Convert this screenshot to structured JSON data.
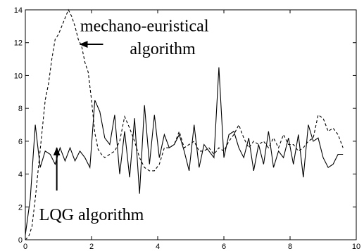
{
  "chart_data": {
    "type": "line",
    "title": "",
    "xlabel": "",
    "ylabel": "",
    "xlim": [
      0,
      10
    ],
    "ylim": [
      0,
      14
    ],
    "xticks": [
      0,
      2,
      4,
      6,
      8,
      10
    ],
    "yticks": [
      0,
      2,
      4,
      6,
      8,
      10,
      12,
      14
    ],
    "grid": false,
    "legend": "none",
    "series": [
      {
        "style": "solid",
        "color": "#000000",
        "x": [
          0.0,
          0.15,
          0.3,
          0.45,
          0.6,
          0.75,
          0.9,
          1.05,
          1.2,
          1.35,
          1.5,
          1.65,
          1.8,
          1.95,
          2.1,
          2.25,
          2.4,
          2.55,
          2.7,
          2.85,
          3.0,
          3.15,
          3.3,
          3.45,
          3.6,
          3.75,
          3.9,
          4.05,
          4.2,
          4.35,
          4.5,
          4.65,
          4.8,
          4.95,
          5.1,
          5.25,
          5.4,
          5.55,
          5.7,
          5.85,
          6.0,
          6.15,
          6.3,
          6.45,
          6.6,
          6.75,
          6.9,
          7.05,
          7.2,
          7.35,
          7.5,
          7.65,
          7.8,
          7.95,
          8.1,
          8.25,
          8.4,
          8.55,
          8.7,
          8.85,
          9.0,
          9.15,
          9.3,
          9.45,
          9.6
        ],
        "y": [
          0.3,
          2.5,
          7.0,
          4.4,
          5.4,
          5.2,
          4.6,
          5.6,
          4.8,
          5.6,
          4.8,
          5.4,
          5.0,
          4.4,
          8.5,
          7.8,
          6.2,
          5.8,
          7.6,
          4.0,
          6.6,
          3.8,
          7.4,
          2.8,
          8.2,
          4.6,
          7.6,
          5.0,
          6.4,
          5.6,
          5.8,
          6.4,
          5.4,
          4.2,
          7.0,
          4.4,
          5.8,
          5.4,
          5.0,
          10.5,
          5.0,
          6.4,
          6.6,
          5.6,
          5.0,
          6.2,
          4.2,
          5.8,
          4.6,
          6.6,
          4.4,
          5.4,
          5.0,
          6.2,
          4.6,
          6.4,
          3.8,
          7.0,
          6.0,
          6.2,
          5.0,
          4.4,
          4.6,
          5.2,
          5.2
        ],
        "name": ""
      },
      {
        "style": "dashed",
        "color": "#000000",
        "x": [
          0.0,
          0.1,
          0.2,
          0.3,
          0.4,
          0.5,
          0.6,
          0.7,
          0.8,
          0.9,
          1.0,
          1.1,
          1.2,
          1.3,
          1.4,
          1.5,
          1.6,
          1.7,
          1.8,
          1.9,
          2.0,
          2.1,
          2.2,
          2.3,
          2.4,
          2.55,
          2.7,
          2.85,
          3.0,
          3.15,
          3.3,
          3.45,
          3.6,
          3.75,
          3.9,
          4.05,
          4.2,
          4.35,
          4.5,
          4.65,
          4.8,
          4.95,
          5.1,
          5.25,
          5.4,
          5.55,
          5.7,
          5.85,
          6.0,
          6.15,
          6.3,
          6.45,
          6.6,
          6.75,
          6.9,
          7.05,
          7.2,
          7.35,
          7.5,
          7.65,
          7.8,
          7.95,
          8.1,
          8.25,
          8.4,
          8.55,
          8.7,
          8.85,
          9.0,
          9.15,
          9.3,
          9.45,
          9.6
        ],
        "y": [
          0.0,
          0.2,
          0.8,
          2.5,
          4.5,
          6.5,
          8.5,
          9.5,
          11.0,
          12.2,
          12.5,
          13.0,
          13.5,
          14.0,
          13.6,
          13.0,
          12.2,
          11.8,
          10.8,
          10.2,
          8.5,
          6.5,
          5.5,
          5.2,
          5.0,
          5.2,
          5.4,
          6.0,
          7.5,
          6.8,
          6.0,
          5.0,
          4.4,
          4.2,
          4.2,
          4.6,
          5.6,
          5.6,
          5.8,
          6.6,
          5.6,
          5.8,
          6.0,
          5.4,
          5.4,
          5.6,
          5.2,
          5.6,
          5.4,
          6.0,
          6.4,
          7.0,
          6.2,
          5.6,
          6.0,
          5.8,
          6.0,
          5.6,
          6.2,
          5.6,
          6.4,
          5.8,
          5.8,
          5.4,
          5.6,
          6.0,
          6.2,
          7.6,
          7.4,
          6.6,
          6.8,
          6.4,
          5.6
        ],
        "name": ""
      }
    ],
    "annotations": [
      {
        "text": "mechano-euristical",
        "x": 3.6,
        "y": 12.7
      },
      {
        "text": "algorithm",
        "x": 4.15,
        "y": 11.3
      },
      {
        "text": "LQG algorithm",
        "x": 2.0,
        "y": 1.2
      }
    ],
    "arrows": [
      {
        "from": [
          2.35,
          11.9
        ],
        "to": [
          1.65,
          11.9
        ]
      },
      {
        "from": [
          0.95,
          3.0
        ],
        "to": [
          0.95,
          5.6
        ]
      }
    ]
  }
}
